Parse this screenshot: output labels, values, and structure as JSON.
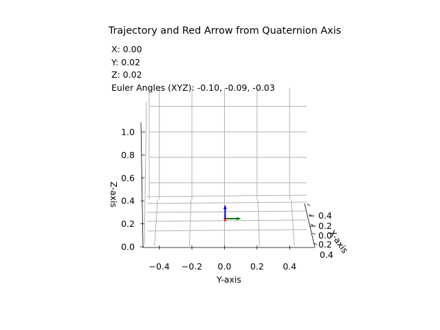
{
  "chart_data": {
    "type": "scatter",
    "projection": "3d",
    "title": "Trajectory and Red Arrow from Quaternion Axis",
    "info": {
      "x_text": "X: 0.00",
      "y_text": "Y: 0.02",
      "z_text": "Z: 0.02",
      "euler_text": "Euler Angles (XYZ): -0.10, -0.09, -0.03"
    },
    "xlabel": "X-axis",
    "ylabel": "Y-axis",
    "zlabel": "Z-axis",
    "x_ticks": [
      "0.4",
      "0.2",
      "0.0",
      "0.2",
      "0.4"
    ],
    "y_ticks": [
      "−0.4",
      "−0.2",
      "0.0",
      "0.2",
      "0.4"
    ],
    "z_ticks": [
      "0.0",
      "0.2",
      "0.4",
      "0.6",
      "0.8",
      "1.0"
    ],
    "ylim": [
      -0.5,
      0.5
    ],
    "zlim": [
      0.0,
      1.1
    ],
    "grid": true,
    "position": {
      "x": 0.0,
      "y": 0.02,
      "z": 0.02
    },
    "euler_angles_xyz": [
      -0.1,
      -0.09,
      -0.03
    ],
    "axes_arrows": [
      {
        "axis": "x",
        "color": "#ff0000"
      },
      {
        "axis": "y",
        "color": "#008000"
      },
      {
        "axis": "z",
        "color": "#0000ff"
      }
    ]
  }
}
